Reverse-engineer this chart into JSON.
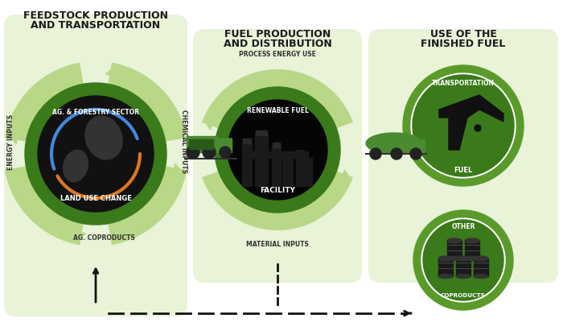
{
  "bg_color": "#ffffff",
  "panel_bg": "#e8f3d8",
  "dark_green": "#3a7a1a",
  "mid_green": "#5a9a2a",
  "light_green_arc": "#a8cc78",
  "inner_green": "#4a8a20",
  "title1_line1": "FEEDSTOCK PRODUCTION",
  "title1_line2": "AND TRANSPORTATION",
  "title2_line1": "FUEL PRODUCTION",
  "title2_line2": "AND DISTRIBUTION",
  "title3_line1": "USE OF THE",
  "title3_line2": "FINISHED FUEL",
  "label_energy": "ENERGY INPUTS",
  "label_chemical": "CHEMICAL INPUTS",
  "label_ag_sector": "AG. & FORESTRY SECTOR",
  "label_land": "LAND USE CHANGE",
  "label_ag_co": "AG. COPRODUCTS",
  "label_process": "PROCESS ENERGY USE",
  "label_renewable": "RENEWABLE FUEL",
  "label_facility": "FACILITY",
  "label_material": "MATERIAL INPUTS",
  "label_transport": "TRANSPORTATION",
  "label_fuel": "FUEL",
  "label_other": "OTHER",
  "label_coproducts": "COPRODUCTS"
}
